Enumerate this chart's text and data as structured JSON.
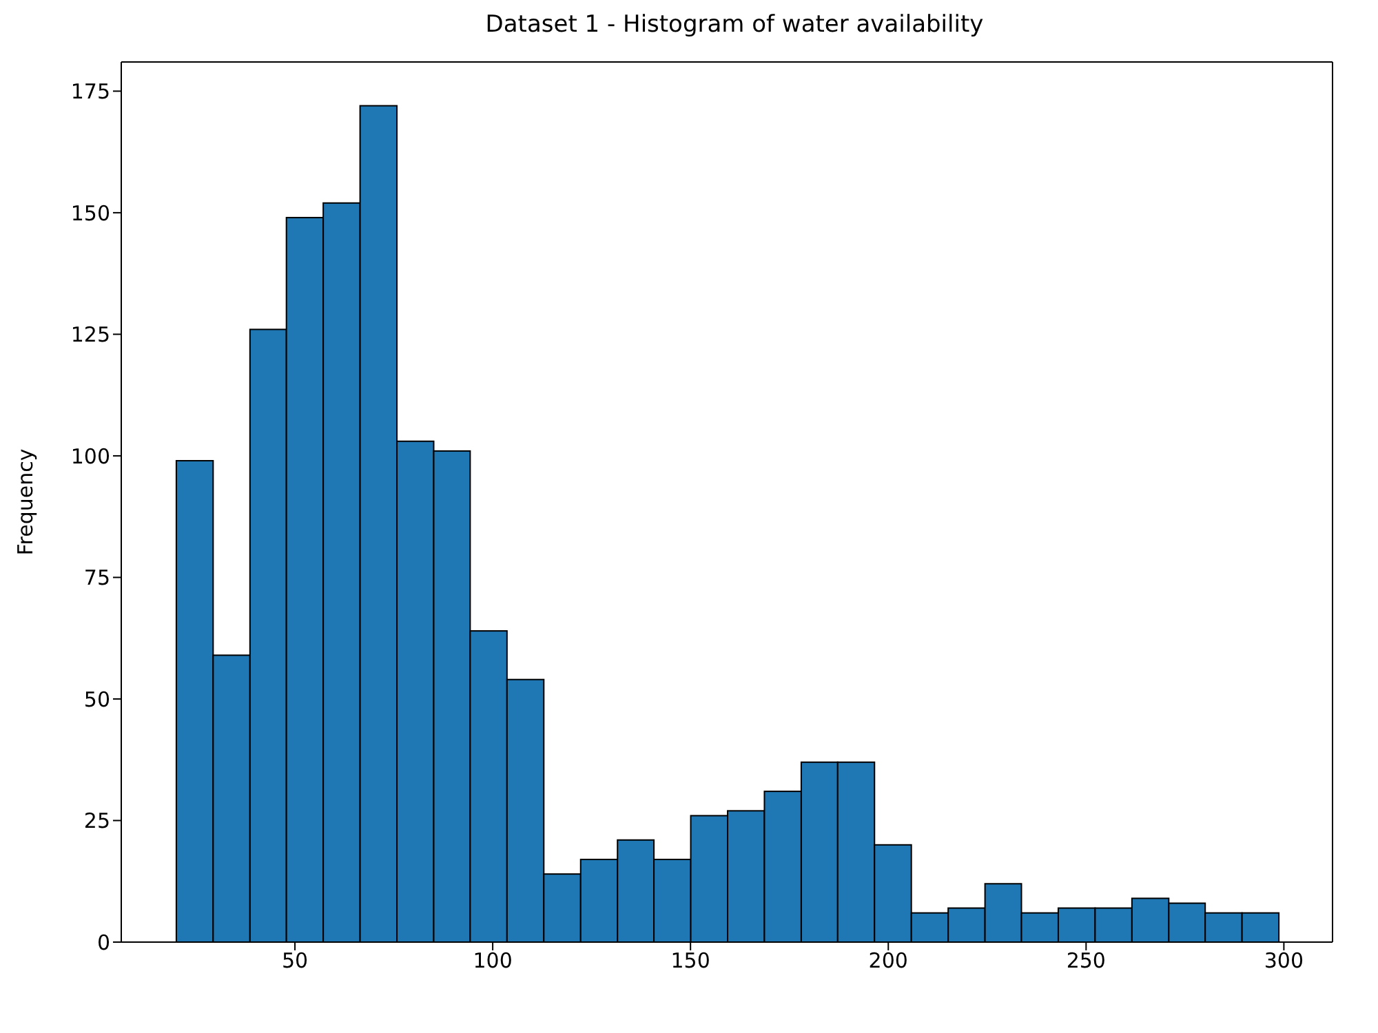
{
  "chart_data": {
    "type": "histogram",
    "title": "Dataset 1 - Histogram of water availability",
    "ylabel": "Frequency",
    "color": "#1f77b4",
    "bins": [
      20.0,
      29.3,
      38.6,
      47.8,
      57.1,
      66.4,
      75.7,
      85.0,
      94.2,
      103.5,
      112.8,
      122.1,
      131.4,
      140.6,
      149.9,
      159.2,
      168.5,
      177.8,
      187.0,
      196.3,
      205.6,
      214.9,
      224.2,
      233.4,
      242.7,
      252.0,
      261.3,
      270.6,
      279.8,
      289.1,
      298.4
    ],
    "values": [
      99,
      59,
      126,
      149,
      152,
      172,
      103,
      101,
      64,
      54,
      14,
      17,
      21,
      17,
      26,
      27,
      31,
      37,
      37,
      20,
      6,
      7,
      12,
      6,
      7,
      7,
      9,
      8,
      6,
      6
    ],
    "xlim": [
      6.1,
      312.3
    ],
    "xticks": [
      50,
      100,
      150,
      200,
      250,
      300
    ],
    "ylim": [
      0,
      181
    ],
    "yticks": [
      0,
      25,
      50,
      75,
      100,
      125,
      150,
      175
    ]
  }
}
